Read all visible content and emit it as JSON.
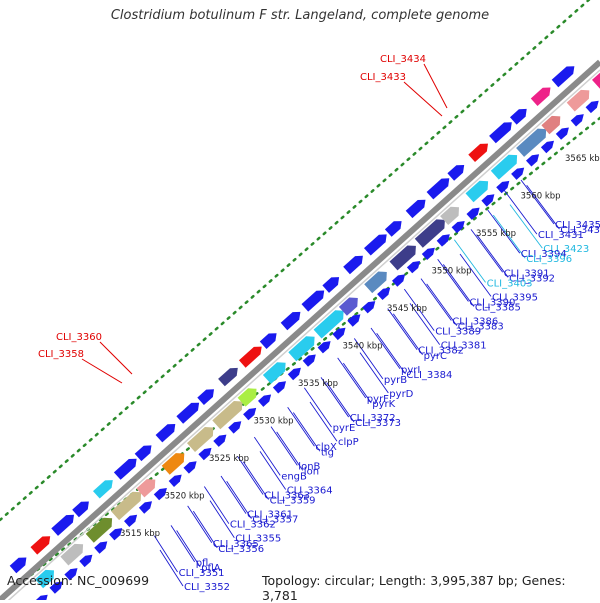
{
  "title": "Clostridium botulinum F str. Langeland, complete genome",
  "footer": {
    "accession": "Accession: NC_009699",
    "summary": "Topology: circular; Length: 3,995,387 bp; Genes: 3,781"
  },
  "colors": {
    "backbone": "#8a8a8a",
    "dotted": "#2a8a2a",
    "label_blue": "#1a1ad0",
    "label_cyan": "#20b8e0",
    "label_red": "#e00000",
    "gene_blue": "#1a1aee"
  },
  "ticks": [
    "3515 kbp",
    "3520 kbp",
    "3525 kbp",
    "3530 kbp",
    "3535 kbp",
    "3540 kbp",
    "3545 kbp",
    "3550 kbp",
    "3555 kbp",
    "3560 kbp",
    "3565 kbp"
  ],
  "outer_labels": [
    {
      "text": "CLI_3434",
      "color": "red"
    },
    {
      "text": "CLI_3433",
      "color": "red"
    },
    {
      "text": "CLI_3360",
      "color": "red"
    },
    {
      "text": "CLI_3358",
      "color": "red"
    }
  ],
  "inner_labels": [
    {
      "text": "CLI_3435",
      "color": "blue"
    },
    {
      "text": "CLI_3432",
      "color": "blue"
    },
    {
      "text": "CLI_3431",
      "color": "blue"
    },
    {
      "text": "CLI_3423",
      "color": "cyan"
    },
    {
      "text": "CLI_3394",
      "color": "blue"
    },
    {
      "text": "CLI_3396",
      "color": "cyan"
    },
    {
      "text": "CLI_3391",
      "color": "blue"
    },
    {
      "text": "CLI_3392",
      "color": "blue"
    },
    {
      "text": "CLI_3403",
      "color": "cyan"
    },
    {
      "text": "CLI_3395",
      "color": "blue"
    },
    {
      "text": "CLI_3390",
      "color": "blue"
    },
    {
      "text": "CLI_3385",
      "color": "blue"
    },
    {
      "text": "CLI_3386",
      "color": "blue"
    },
    {
      "text": "CLI_3383",
      "color": "blue"
    },
    {
      "text": "CLI_3389",
      "color": "blue"
    },
    {
      "text": "CLI_3381",
      "color": "blue"
    },
    {
      "text": "CLI_3382",
      "color": "blue"
    },
    {
      "text": "pyrC",
      "color": "blue"
    },
    {
      "text": "pyrI",
      "color": "blue"
    },
    {
      "text": "CLI_3384",
      "color": "blue"
    },
    {
      "text": "pyrB",
      "color": "blue"
    },
    {
      "text": "pyrD",
      "color": "blue"
    },
    {
      "text": "pyrF",
      "color": "blue"
    },
    {
      "text": "pyrK",
      "color": "blue"
    },
    {
      "text": "CLI_3372",
      "color": "blue"
    },
    {
      "text": "CLI_3373",
      "color": "blue"
    },
    {
      "text": "pyrE",
      "color": "blue"
    },
    {
      "text": "clpP",
      "color": "blue"
    },
    {
      "text": "clpX",
      "color": "blue"
    },
    {
      "text": "tig",
      "color": "blue"
    },
    {
      "text": "lonB",
      "color": "blue"
    },
    {
      "text": "lon",
      "color": "blue"
    },
    {
      "text": "engB",
      "color": "blue"
    },
    {
      "text": "CLI_3364",
      "color": "blue"
    },
    {
      "text": "CLI_3363",
      "color": "blue"
    },
    {
      "text": "CLI_3359",
      "color": "blue"
    },
    {
      "text": "CLI_3361",
      "color": "blue"
    },
    {
      "text": "CLI_3357",
      "color": "blue"
    },
    {
      "text": "CLI_3362",
      "color": "blue"
    },
    {
      "text": "CLI_3355",
      "color": "blue"
    },
    {
      "text": "CLI_3365",
      "color": "blue"
    },
    {
      "text": "CLI_3356",
      "color": "blue"
    },
    {
      "text": "pfl",
      "color": "blue"
    },
    {
      "text": "pflA",
      "color": "blue"
    },
    {
      "text": "CLI_3351",
      "color": "blue"
    },
    {
      "text": "CLI_3352",
      "color": "blue"
    }
  ],
  "genes_outer": [
    {
      "color": "blue"
    },
    {
      "color": "red"
    },
    {
      "color": "blue"
    },
    {
      "color": "blue"
    },
    {
      "color": "cyan"
    },
    {
      "color": "blue"
    },
    {
      "color": "blue"
    },
    {
      "color": "blue"
    },
    {
      "color": "blue"
    },
    {
      "color": "blue"
    },
    {
      "color": "navy"
    },
    {
      "color": "red"
    },
    {
      "color": "blue"
    },
    {
      "color": "blue"
    },
    {
      "color": "blue"
    },
    {
      "color": "blue"
    },
    {
      "color": "blue"
    },
    {
      "color": "blue"
    },
    {
      "color": "blue"
    },
    {
      "color": "blue"
    },
    {
      "color": "blue"
    },
    {
      "color": "blue"
    },
    {
      "color": "red"
    },
    {
      "color": "blue"
    },
    {
      "color": "blue"
    },
    {
      "color": "magenta"
    },
    {
      "color": "blue"
    }
  ],
  "genes_inner": [
    {
      "color": "cyan"
    },
    {
      "color": "gray"
    },
    {
      "color": "olive"
    },
    {
      "color": "tan"
    },
    {
      "color": "pink"
    },
    {
      "color": "orange"
    },
    {
      "color": "tan"
    },
    {
      "color": "tan"
    },
    {
      "color": "lime"
    },
    {
      "color": "cyan"
    },
    {
      "color": "cyan"
    },
    {
      "color": "cyan"
    },
    {
      "color": "purple"
    },
    {
      "color": "steel"
    },
    {
      "color": "navy"
    },
    {
      "color": "navy"
    },
    {
      "color": "gray"
    },
    {
      "color": "cyan"
    },
    {
      "color": "cyan"
    },
    {
      "color": "steel"
    },
    {
      "color": "salmon"
    },
    {
      "color": "pink"
    },
    {
      "color": "magenta"
    }
  ]
}
